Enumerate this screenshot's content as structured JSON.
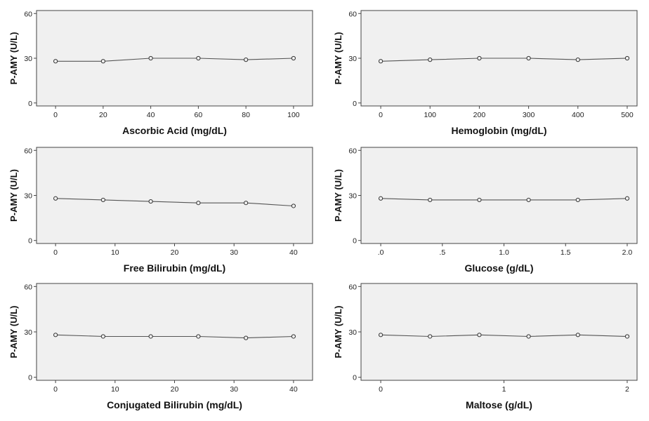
{
  "chart_data": [
    {
      "type": "line",
      "ylabel": "P-AMY (U/L)",
      "xlabel": "Ascorbic Acid (mg/dL)",
      "x": [
        0,
        20,
        40,
        60,
        80,
        100
      ],
      "values": [
        28,
        28,
        30,
        30,
        29,
        30
      ],
      "xlim": [
        -8,
        108
      ],
      "ylim": [
        -2,
        62
      ],
      "yticks": [
        0,
        30,
        60
      ],
      "xticks": [
        0,
        20,
        40,
        60,
        80,
        100
      ],
      "xtick_labels": [
        "0",
        "20",
        "40",
        "60",
        "80",
        "100"
      ],
      "grid": false
    },
    {
      "type": "line",
      "ylabel": "P-AMY (U/L)",
      "xlabel": "Hemoglobin (mg/dL)",
      "x": [
        0,
        100,
        200,
        300,
        400,
        500
      ],
      "values": [
        28,
        29,
        30,
        30,
        29,
        30
      ],
      "xlim": [
        -40,
        520
      ],
      "ylim": [
        -2,
        62
      ],
      "yticks": [
        0,
        30,
        60
      ],
      "xticks": [
        0,
        100,
        200,
        300,
        400,
        500
      ],
      "xtick_labels": [
        "0",
        "100",
        "200",
        "300",
        "400",
        "500"
      ],
      "grid": false
    },
    {
      "type": "line",
      "ylabel": "P-AMY (U/L)",
      "xlabel": "Free Bilirubin (mg/dL)",
      "x": [
        0,
        8,
        16,
        24,
        32,
        40
      ],
      "values": [
        28,
        27,
        26,
        25,
        25,
        23
      ],
      "xlim": [
        -3.2,
        43.2
      ],
      "ylim": [
        -2,
        62
      ],
      "yticks": [
        0,
        30,
        60
      ],
      "xticks": [
        0,
        10,
        20,
        30,
        40
      ],
      "xtick_labels": [
        "0",
        "10",
        "20",
        "30",
        "40"
      ],
      "grid": false
    },
    {
      "type": "line",
      "ylabel": "P-AMY (U/L)",
      "xlabel": "Glucose (g/dL)",
      "x": [
        0,
        0.4,
        0.8,
        1.2,
        1.6,
        2.0
      ],
      "values": [
        28,
        27,
        27,
        27,
        27,
        28
      ],
      "xlim": [
        -0.16,
        2.08
      ],
      "ylim": [
        -2,
        62
      ],
      "yticks": [
        0,
        30,
        60
      ],
      "xticks": [
        0,
        0.5,
        1.0,
        1.5,
        2.0
      ],
      "xtick_labels": [
        ".0",
        ".5",
        "1.0",
        "1.5",
        "2.0"
      ],
      "grid": false
    },
    {
      "type": "line",
      "ylabel": "P-AMY (U/L)",
      "xlabel": "Conjugated Bilirubin (mg/dL)",
      "x": [
        0,
        8,
        16,
        24,
        32,
        40
      ],
      "values": [
        28,
        27,
        27,
        27,
        26,
        27
      ],
      "xlim": [
        -3.2,
        43.2
      ],
      "ylim": [
        -2,
        62
      ],
      "yticks": [
        0,
        30,
        60
      ],
      "xticks": [
        0,
        10,
        20,
        30,
        40
      ],
      "xtick_labels": [
        "0",
        "10",
        "20",
        "30",
        "40"
      ],
      "grid": false
    },
    {
      "type": "line",
      "ylabel": "P-AMY (U/L)",
      "xlabel": "Maltose (g/dL)",
      "x": [
        0,
        0.4,
        0.8,
        1.2,
        1.6,
        2.0
      ],
      "values": [
        28,
        27,
        28,
        27,
        28,
        27
      ],
      "xlim": [
        -0.16,
        2.08
      ],
      "ylim": [
        -2,
        62
      ],
      "yticks": [
        0,
        30,
        60
      ],
      "xticks": [
        0,
        1,
        2
      ],
      "xtick_labels": [
        "0",
        "1",
        "2"
      ],
      "grid": false
    }
  ]
}
